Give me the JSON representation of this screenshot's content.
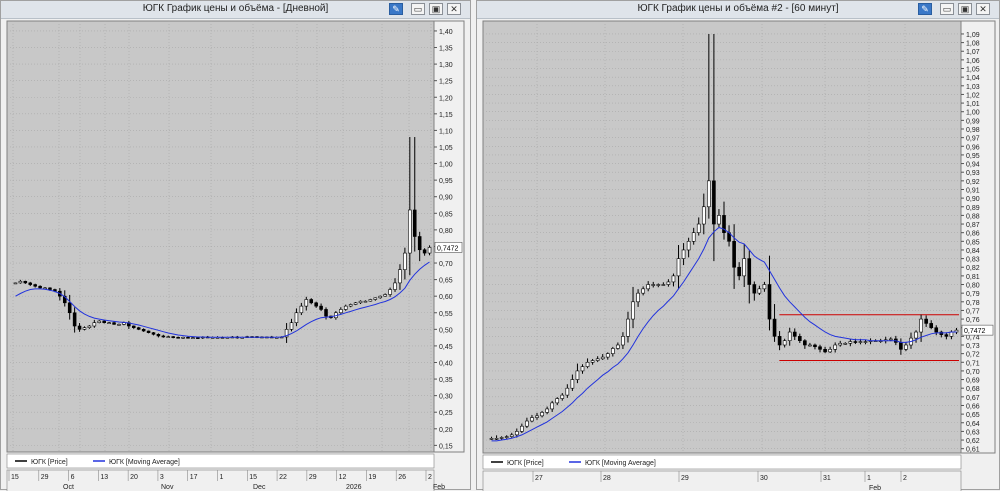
{
  "windows": [
    {
      "title": "ЮГК График цены и объёма - [Дневной]",
      "buttons": {
        "pin": "✎",
        "minimize": "▭",
        "maximize": "▣",
        "close": "✕"
      },
      "legend": [
        {
          "label": "ЮГК [Price]",
          "color": "#000000"
        },
        {
          "label": "ЮГК [Moving Average]",
          "color": "#2233dd"
        }
      ],
      "date_row1": [
        "15",
        "29",
        "6",
        "13",
        "20",
        "3",
        "17",
        "1",
        "15",
        "22",
        "29",
        "12",
        "19",
        "26",
        "2"
      ],
      "date_row2": [
        "Oct",
        "Nov",
        "Dec",
        "2026",
        "Feb"
      ],
      "price_tag": "0,7472"
    },
    {
      "title": "ЮГК График цены и объёма #2 - [60 минут]",
      "buttons": {
        "pin": "✎",
        "minimize": "▭",
        "maximize": "▣",
        "close": "✕"
      },
      "legend": [
        {
          "label": "ЮГК [Price]",
          "color": "#000000"
        },
        {
          "label": "ЮГК [Moving Average]",
          "color": "#2233dd"
        }
      ],
      "date_row1": [
        "27",
        "28",
        "29",
        "30",
        "31",
        "1",
        "2"
      ],
      "date_row2": [
        "Feb"
      ],
      "price_tag": "0,7472"
    }
  ],
  "chart_data": [
    {
      "type": "candlestick",
      "title": "ЮГК График цены и объёма - [Дневной]",
      "timeframe": "daily",
      "ylim": [
        0.13,
        1.43
      ],
      "yticks": [
        "0,15",
        "0,20",
        "0,25",
        "0,30",
        "0,35",
        "0,40",
        "0,45",
        "0,50",
        "0,55",
        "0,60",
        "0,65",
        "0,70",
        "0,75",
        "0,80",
        "0,85",
        "0,90",
        "0,95",
        "1,00",
        "1,05",
        "1,10",
        "1,15",
        "1,20",
        "1,25",
        "1,30",
        "1,35",
        "1,40"
      ],
      "last_price": 0.7472,
      "grid": true,
      "series": [
        {
          "name": "ЮГК [Price]",
          "close": [
            0.64,
            0.645,
            0.64,
            0.635,
            0.63,
            0.625,
            0.625,
            0.62,
            0.615,
            0.6,
            0.58,
            0.55,
            0.51,
            0.5,
            0.505,
            0.51,
            0.52,
            0.525,
            0.52,
            0.52,
            0.515,
            0.515,
            0.52,
            0.51,
            0.505,
            0.5,
            0.495,
            0.49,
            0.485,
            0.48,
            0.478,
            0.478,
            0.476,
            0.475,
            0.476,
            0.475,
            0.475,
            0.474,
            0.477,
            0.476,
            0.476,
            0.476,
            0.475,
            0.476,
            0.477,
            0.475,
            0.476,
            0.478,
            0.478,
            0.476,
            0.477,
            0.477,
            0.476,
            0.476,
            0.477,
            0.5,
            0.52,
            0.55,
            0.57,
            0.59,
            0.58,
            0.57,
            0.56,
            0.54,
            0.535,
            0.55,
            0.56,
            0.57,
            0.575,
            0.58,
            0.585,
            0.585,
            0.59,
            0.595,
            0.6,
            0.605,
            0.62,
            0.64,
            0.68,
            0.73,
            0.86,
            0.78,
            0.74,
            0.73,
            0.7472
          ]
        },
        {
          "name": "ЮГК [Moving Average]",
          "values": [
            0.6,
            0.608,
            0.615,
            0.62,
            0.622,
            0.622,
            0.621,
            0.618,
            0.614,
            0.608,
            0.598,
            0.584,
            0.569,
            0.556,
            0.546,
            0.539,
            0.534,
            0.531,
            0.528,
            0.526,
            0.524,
            0.522,
            0.521,
            0.519,
            0.516,
            0.513,
            0.509,
            0.505,
            0.501,
            0.497,
            0.493,
            0.489,
            0.486,
            0.483,
            0.481,
            0.479,
            0.478,
            0.477,
            0.477,
            0.476,
            0.476,
            0.476,
            0.476,
            0.476,
            0.476,
            0.476,
            0.476,
            0.476,
            0.476,
            0.476,
            0.476,
            0.476,
            0.476,
            0.476,
            0.477,
            0.481,
            0.487,
            0.495,
            0.505,
            0.515,
            0.523,
            0.53,
            0.535,
            0.537,
            0.538,
            0.541,
            0.545,
            0.55,
            0.554,
            0.559,
            0.563,
            0.567,
            0.571,
            0.575,
            0.58,
            0.584,
            0.59,
            0.598,
            0.61,
            0.624,
            0.648,
            0.666,
            0.681,
            0.693,
            0.703
          ]
        }
      ]
    },
    {
      "type": "candlestick",
      "title": "ЮГК График цены и объёма #2 - [60 минут]",
      "timeframe": "60 min",
      "ylim": [
        0.605,
        1.105
      ],
      "yticks": [
        "0,61",
        "0,62",
        "0,63",
        "0,64",
        "0,65",
        "0,66",
        "0,67",
        "0,68",
        "0,69",
        "0,70",
        "0,71",
        "0,72",
        "0,73",
        "0,74",
        "0,75",
        "0,76",
        "0,77",
        "0,78",
        "0,79",
        "0,80",
        "0,81",
        "0,82",
        "0,83",
        "0,84",
        "0,85",
        "0,86",
        "0,87",
        "0,88",
        "0,89",
        "0,90",
        "0,91",
        "0,92",
        "0,93",
        "0,94",
        "0,95",
        "0,96",
        "0,97",
        "0,98",
        "0,99",
        "1,00",
        "1,01",
        "1,02",
        "1,03",
        "1,04",
        "1,05",
        "1,06",
        "1,07",
        "1,08",
        "1,09"
      ],
      "last_price": 0.7472,
      "grid": true,
      "annotations": [
        {
          "type": "hline",
          "y": 0.765,
          "color": "#cc0000"
        },
        {
          "type": "hline",
          "y": 0.712,
          "color": "#cc0000"
        }
      ],
      "series": [
        {
          "name": "ЮГК [Price]",
          "close": [
            0.622,
            0.622,
            0.623,
            0.624,
            0.626,
            0.63,
            0.636,
            0.642,
            0.646,
            0.648,
            0.652,
            0.656,
            0.663,
            0.668,
            0.672,
            0.68,
            0.69,
            0.7,
            0.705,
            0.71,
            0.712,
            0.714,
            0.716,
            0.72,
            0.726,
            0.73,
            0.74,
            0.76,
            0.78,
            0.79,
            0.795,
            0.8,
            0.8,
            0.8,
            0.8,
            0.803,
            0.81,
            0.83,
            0.84,
            0.85,
            0.86,
            0.87,
            0.89,
            0.92,
            0.87,
            0.88,
            0.86,
            0.85,
            0.82,
            0.81,
            0.83,
            0.8,
            0.79,
            0.795,
            0.8,
            0.76,
            0.74,
            0.73,
            0.735,
            0.745,
            0.74,
            0.735,
            0.73,
            0.73,
            0.728,
            0.725,
            0.722,
            0.725,
            0.73,
            0.732,
            0.732,
            0.734,
            0.733,
            0.734,
            0.734,
            0.735,
            0.735,
            0.735,
            0.736,
            0.737,
            0.733,
            0.725,
            0.73,
            0.738,
            0.745,
            0.76,
            0.755,
            0.75,
            0.745,
            0.742,
            0.74,
            0.745,
            0.7472
          ]
        },
        {
          "name": "ЮГК [Moving Average]",
          "values": [
            0.619,
            0.619,
            0.62,
            0.621,
            0.622,
            0.624,
            0.626,
            0.629,
            0.632,
            0.635,
            0.638,
            0.641,
            0.645,
            0.649,
            0.653,
            0.658,
            0.663,
            0.669,
            0.674,
            0.68,
            0.685,
            0.69,
            0.695,
            0.699,
            0.704,
            0.708,
            0.714,
            0.721,
            0.73,
            0.74,
            0.749,
            0.757,
            0.764,
            0.77,
            0.775,
            0.781,
            0.787,
            0.795,
            0.803,
            0.812,
            0.821,
            0.83,
            0.841,
            0.854,
            0.861,
            0.866,
            0.864,
            0.86,
            0.854,
            0.849,
            0.847,
            0.84,
            0.833,
            0.829,
            0.826,
            0.816,
            0.806,
            0.796,
            0.787,
            0.78,
            0.774,
            0.768,
            0.762,
            0.757,
            0.753,
            0.749,
            0.745,
            0.742,
            0.74,
            0.739,
            0.738,
            0.737,
            0.736,
            0.736,
            0.736,
            0.735,
            0.735,
            0.735,
            0.735,
            0.735,
            0.735,
            0.733,
            0.733,
            0.734,
            0.736,
            0.739,
            0.741,
            0.743,
            0.744,
            0.744,
            0.744,
            0.745,
            0.745
          ]
        }
      ]
    }
  ]
}
